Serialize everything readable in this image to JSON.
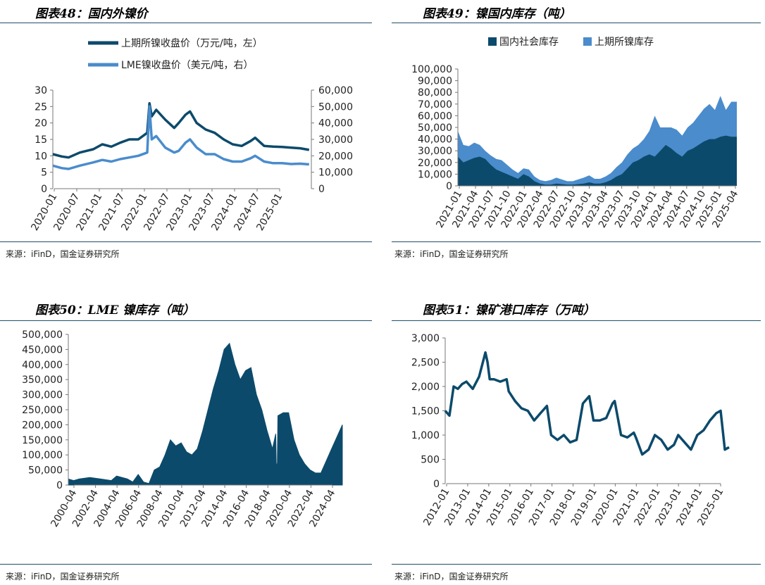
{
  "colors": {
    "dark": "#0c4a6b",
    "light": "#4a8ccc",
    "rule": "#1f4e6b",
    "axis": "#777777"
  },
  "panels": [
    {
      "title": "图表48：国内外镍价",
      "source": "来源：iFinD，国金证券研究所"
    },
    {
      "title": "图表49：镍国内库存（吨）",
      "source": "来源：iFinD，国金证券研究所"
    },
    {
      "title": "图表50：LME 镍库存（吨）",
      "source": "来源：iFinD，国金证券研究所"
    },
    {
      "title": "图表51：镍矿港口库存（万吨）",
      "source": "来源：iFinD，国金证券研究所"
    }
  ],
  "chart_data": [
    {
      "type": "line",
      "title": "图表48：国内外镍价",
      "legend": [
        "上期所镍收盘价（万元/吨，左）",
        "LME镍收盘价（美元/吨，右）"
      ],
      "x_ticks": [
        "2020-01",
        "2020-07",
        "2021-01",
        "2021-07",
        "2022-01",
        "2022-07",
        "2023-01",
        "2023-07",
        "2024-01",
        "2024-07",
        "2025-01"
      ],
      "yticks_left": [
        "0",
        "5",
        "10",
        "15",
        "20",
        "25",
        "30"
      ],
      "yticks_right": [
        "0",
        "10,000",
        "20,000",
        "30,000",
        "40,000",
        "50,000",
        "60,000"
      ],
      "ylim_left": [
        0,
        30
      ],
      "ylim_right": [
        0,
        60000
      ],
      "x_range": [
        2020.0,
        2025.75
      ],
      "series": [
        {
          "name": "上期所镍收盘价（万元/吨，左）",
          "axis": "left",
          "x": [
            2020.0,
            2020.2,
            2020.35,
            2020.6,
            2020.9,
            2021.1,
            2021.3,
            2021.5,
            2021.7,
            2021.9,
            2022.1,
            2022.15,
            2022.2,
            2022.3,
            2022.5,
            2022.7,
            2022.8,
            2022.95,
            2023.05,
            2023.2,
            2023.4,
            2023.6,
            2023.8,
            2024.0,
            2024.2,
            2024.4,
            2024.5,
            2024.7,
            2024.9,
            2025.1,
            2025.3,
            2025.5,
            2025.7
          ],
          "values": [
            10.5,
            9.8,
            9.5,
            11,
            12,
            13.5,
            12.8,
            14,
            15,
            15,
            17,
            26,
            22,
            24,
            21,
            18.5,
            20,
            22.5,
            23.5,
            20,
            18,
            17,
            15,
            13.5,
            13,
            14.5,
            15.5,
            13,
            12.8,
            12.7,
            12.5,
            12.3,
            11.8
          ]
        },
        {
          "name": "LME镍收盘价（美元/吨，右）",
          "axis": "right",
          "x": [
            2020.0,
            2020.2,
            2020.35,
            2020.6,
            2020.9,
            2021.1,
            2021.3,
            2021.5,
            2021.7,
            2021.9,
            2022.1,
            2022.15,
            2022.2,
            2022.3,
            2022.5,
            2022.7,
            2022.8,
            2022.95,
            2023.05,
            2023.2,
            2023.4,
            2023.6,
            2023.8,
            2024.0,
            2024.2,
            2024.4,
            2024.5,
            2024.7,
            2024.9,
            2025.1,
            2025.3,
            2025.5,
            2025.7
          ],
          "values": [
            14000,
            12500,
            12000,
            14000,
            16000,
            17500,
            16500,
            18000,
            19000,
            20000,
            22000,
            50000,
            30000,
            32000,
            25000,
            22000,
            23000,
            28000,
            30000,
            25000,
            21000,
            21000,
            18000,
            16500,
            16500,
            18500,
            20000,
            16500,
            15500,
            15500,
            15000,
            15200,
            14800
          ]
        }
      ]
    },
    {
      "type": "area",
      "title": "图表49：镍国内库存（吨）",
      "legend": [
        "国内社会库存",
        "上期所镍库存"
      ],
      "x_ticks": [
        "2021-01",
        "2021-04",
        "2021-07",
        "2021-10",
        "2022-01",
        "2022-04",
        "2022-07",
        "2022-10",
        "2023-01",
        "2023-04",
        "2023-07",
        "2023-10",
        "2024-01",
        "2024-04",
        "2024-07",
        "2024-10",
        "2025-01",
        "2025-04"
      ],
      "yticks": [
        "0",
        "10,000",
        "20,000",
        "30,000",
        "40,000",
        "50,000",
        "60,000",
        "70,000",
        "80,000",
        "90,000",
        "100,000"
      ],
      "ylim": [
        0,
        100000
      ],
      "x_range": [
        0,
        51
      ],
      "x": [
        0,
        1,
        2,
        3,
        4,
        5,
        6,
        7,
        8,
        9,
        10,
        11,
        12,
        13,
        14,
        15,
        16,
        17,
        18,
        19,
        20,
        21,
        22,
        23,
        24,
        25,
        26,
        27,
        28,
        29,
        30,
        31,
        32,
        33,
        34,
        35,
        36,
        37,
        38,
        39,
        40,
        41,
        42,
        43,
        44,
        45,
        46,
        47,
        48,
        49,
        50,
        51
      ],
      "series": [
        {
          "name": "国内社会库存",
          "values": [
            25000,
            20000,
            22000,
            24000,
            25000,
            23000,
            18000,
            14000,
            12000,
            10000,
            8000,
            6000,
            10000,
            8000,
            4000,
            2000,
            1000,
            1000,
            2000,
            1500,
            1000,
            1000,
            1500,
            2000,
            3000,
            2000,
            2000,
            3000,
            5000,
            8000,
            10000,
            15000,
            20000,
            22000,
            25000,
            27000,
            25000,
            30000,
            35000,
            32000,
            28000,
            25000,
            30000,
            32000,
            35000,
            38000,
            40000,
            40000,
            42000,
            43000,
            42000,
            42000
          ]
        },
        {
          "name": "上期所镍库存",
          "values": [
            22000,
            15000,
            12000,
            13000,
            10000,
            7000,
            8000,
            9000,
            10000,
            8000,
            6000,
            5000,
            5000,
            6000,
            4000,
            3000,
            3000,
            4000,
            5000,
            4000,
            3000,
            3000,
            4000,
            5000,
            6000,
            4000,
            4000,
            5000,
            6000,
            8000,
            10000,
            12000,
            12000,
            13000,
            15000,
            20000,
            35000,
            20000,
            15000,
            18000,
            20000,
            18000,
            20000,
            22000,
            25000,
            28000,
            30000,
            25000,
            35000,
            22000,
            30000,
            30000
          ]
        }
      ]
    },
    {
      "type": "area",
      "title": "图表50：LME 镍库存（吨）",
      "x_ticks": [
        "2000-04",
        "2002-04",
        "2004-04",
        "2006-04",
        "2008-04",
        "2010-04",
        "2012-04",
        "2014-04",
        "2016-04",
        "2018-04",
        "2020-04",
        "2022-04",
        "2024-04"
      ],
      "yticks": [
        "0",
        "50,000",
        "100,000",
        "150,000",
        "200,000",
        "250,000",
        "300,000",
        "350,000",
        "400,000",
        "450,000",
        "500,000"
      ],
      "ylim": [
        0,
        500000
      ],
      "x_range": [
        2000.0,
        2025.5
      ],
      "series": [
        {
          "name": "LME 镍库存",
          "x": [
            2000.0,
            2000.5,
            2001.0,
            2002.0,
            2003.0,
            2004.0,
            2004.5,
            2005.5,
            2006.0,
            2006.5,
            2007.0,
            2007.5,
            2008.0,
            2008.5,
            2009.0,
            2009.5,
            2010.0,
            2010.5,
            2011.0,
            2011.5,
            2012.0,
            2012.5,
            2013.0,
            2013.5,
            2014.0,
            2014.5,
            2015.0,
            2015.5,
            2016.0,
            2016.5,
            2017.0,
            2017.5,
            2018.0,
            2018.5,
            2019.0,
            2019.3,
            2019.35,
            2019.4,
            2019.45,
            2019.5,
            2020.0,
            2020.5,
            2021.0,
            2021.5,
            2022.0,
            2022.5,
            2023.0,
            2023.5,
            2024.0,
            2024.5,
            2025.0,
            2025.5
          ],
          "values": [
            20000,
            15000,
            20000,
            25000,
            20000,
            15000,
            30000,
            20000,
            10000,
            35000,
            10000,
            5000,
            50000,
            60000,
            100000,
            150000,
            130000,
            140000,
            110000,
            100000,
            120000,
            180000,
            250000,
            320000,
            380000,
            450000,
            470000,
            400000,
            350000,
            380000,
            390000,
            300000,
            250000,
            180000,
            120000,
            170000,
            70000,
            70000,
            70000,
            230000,
            240000,
            240000,
            150000,
            100000,
            70000,
            50000,
            40000,
            40000,
            80000,
            120000,
            160000,
            200000
          ]
        }
      ]
    },
    {
      "type": "line",
      "title": "图表51：镍矿港口库存（万吨）",
      "x_ticks": [
        "2012-01",
        "2013-01",
        "2014-01",
        "2015-01",
        "2016-01",
        "2017-01",
        "2018-01",
        "2019-01",
        "2020-01",
        "2021-01",
        "2022-01",
        "2023-01",
        "2024-01",
        "2025-01"
      ],
      "yticks": [
        "0",
        "500",
        "1,000",
        "1,500",
        "2,000",
        "2,500",
        "3,000"
      ],
      "ylim": [
        0,
        3000
      ],
      "x_range": [
        2012.0,
        2025.5
      ],
      "series": [
        {
          "name": "镍矿港口库存",
          "x": [
            2012.0,
            2012.2,
            2012.4,
            2012.6,
            2012.8,
            2013.0,
            2013.3,
            2013.6,
            2013.9,
            2014.0,
            2014.1,
            2014.3,
            2014.6,
            2014.9,
            2015.0,
            2015.3,
            2015.6,
            2015.9,
            2016.2,
            2016.5,
            2016.8,
            2017.0,
            2017.3,
            2017.6,
            2017.9,
            2018.2,
            2018.5,
            2018.8,
            2019.0,
            2019.3,
            2019.6,
            2019.9,
            2020.0,
            2020.3,
            2020.6,
            2020.9,
            2021.0,
            2021.3,
            2021.6,
            2021.9,
            2022.2,
            2022.5,
            2022.8,
            2023.0,
            2023.3,
            2023.6,
            2023.9,
            2024.2,
            2024.5,
            2024.8,
            2025.0,
            2025.2,
            2025.4
          ],
          "values": [
            1500,
            1400,
            2000,
            1950,
            2050,
            2100,
            1950,
            2200,
            2700,
            2500,
            2150,
            2150,
            2100,
            2150,
            1900,
            1700,
            1550,
            1500,
            1300,
            1450,
            1600,
            1000,
            900,
            1000,
            850,
            900,
            1650,
            1800,
            1300,
            1300,
            1350,
            1650,
            1700,
            1000,
            950,
            1050,
            950,
            600,
            700,
            1000,
            900,
            700,
            800,
            1000,
            850,
            700,
            1000,
            1100,
            1300,
            1450,
            1500,
            700,
            750
          ]
        }
      ]
    }
  ]
}
